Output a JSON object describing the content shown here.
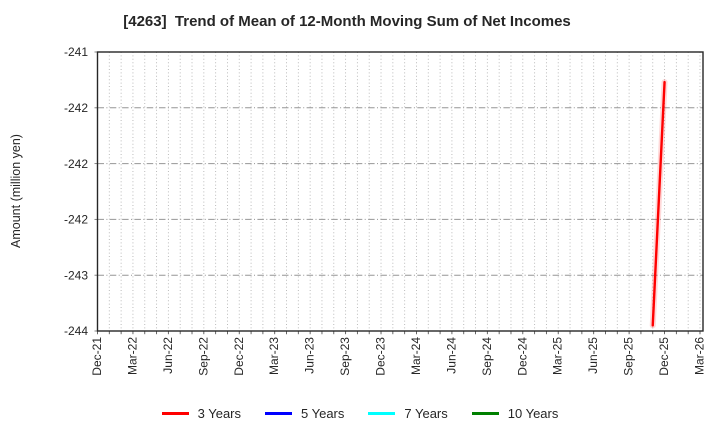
{
  "figure": {
    "title": "[4263]  Trend of Mean of 12-Month Moving Sum of Net Incomes",
    "y_axis_label": "Amount (million yen)"
  },
  "chart_data": {
    "type": "line",
    "title": "[4263]  Trend of Mean of 12-Month Moving Sum of Net Incomes",
    "xlabel": "",
    "ylabel": "Amount (million yen)",
    "x_axis": {
      "tick_labels": [
        "Dec-21",
        "Mar-22",
        "Jun-22",
        "Sep-22",
        "Dec-22",
        "Mar-23",
        "Jun-23",
        "Sep-23",
        "Dec-23",
        "Mar-24",
        "Jun-24",
        "Sep-24",
        "Dec-24",
        "Mar-25",
        "Jun-25",
        "Sep-25",
        "Dec-25",
        "Mar-26"
      ],
      "minor_unit": "month",
      "months_span": 51
    },
    "y_axis": {
      "min": -243.5,
      "max": -241.0,
      "tick_values": [
        -241.0,
        -241.5,
        -242.0,
        -242.5,
        -243.0,
        -243.5
      ],
      "tick_labels": [
        "-241",
        "-242",
        "-242",
        "-242",
        "-243",
        "-244"
      ]
    },
    "grid": {
      "vertical": "dotted gray line at every month",
      "horizontal": "dash-dot gray line at every 0.5 y-tick"
    },
    "legend": {
      "position": "bottom center",
      "entries": [
        "3 Years",
        "5 Years",
        "7 Years",
        "10 Years"
      ]
    },
    "series": [
      {
        "name": "3 Years",
        "color": "#ff0000",
        "points": [
          {
            "x": "Nov-25",
            "month_index": 47,
            "y": -243.45
          },
          {
            "x": "Dec-25",
            "month_index": 48,
            "y": -241.27
          }
        ]
      },
      {
        "name": "5 Years",
        "color": "#0000ff",
        "points": []
      },
      {
        "name": "7 Years",
        "color": "#00ffff",
        "points": []
      },
      {
        "name": "10 Years",
        "color": "#008000",
        "points": []
      }
    ]
  }
}
